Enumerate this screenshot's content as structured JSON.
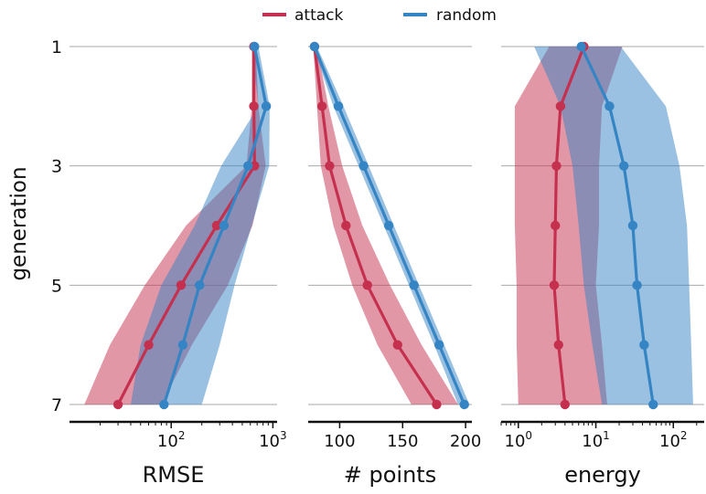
{
  "legend": {
    "position": "top-center"
  },
  "colors": {
    "attack": "#c5304f",
    "random": "#3584c3",
    "grid": "#aaaaaa",
    "axis": "#111111"
  },
  "chart_data": [
    {
      "type": "line",
      "ylabel": "generation",
      "xlabel": "RMSE",
      "xscale": "log",
      "xlim": [
        10,
        1100
      ],
      "xticks": [
        {
          "value": 100,
          "label": "10",
          "exp": "2"
        },
        {
          "value": 1000,
          "label": "10",
          "exp": "3"
        }
      ],
      "y": [
        1,
        2,
        3,
        4,
        5,
        6,
        7
      ],
      "yticks": [
        "1",
        "3",
        "5",
        "7"
      ],
      "grid": "horizontal",
      "series": [
        {
          "name": "attack",
          "values": [
            650,
            650,
            660,
            280,
            125,
            60,
            30
          ],
          "lower": [
            620,
            620,
            550,
            140,
            55,
            25,
            14
          ],
          "upper": [
            680,
            720,
            850,
            630,
            360,
            160,
            80
          ]
        },
        {
          "name": "random",
          "values": [
            660,
            860,
            570,
            330,
            190,
            130,
            85
          ],
          "lower": [
            620,
            720,
            310,
            170,
            80,
            50,
            40
          ],
          "upper": [
            720,
            930,
            920,
            620,
            420,
            300,
            200
          ]
        }
      ]
    },
    {
      "type": "line",
      "xlabel": "# points",
      "xscale": "linear",
      "xlim": [
        75,
        205
      ],
      "xticks": [
        {
          "value": 100,
          "label": "100"
        },
        {
          "value": 150,
          "label": "150"
        },
        {
          "value": 200,
          "label": "200"
        }
      ],
      "y": [
        1,
        2,
        3,
        4,
        5,
        6,
        7
      ],
      "series": [
        {
          "name": "attack",
          "values": [
            80,
            86,
            92,
            105,
            122,
            146,
            177
          ],
          "lower": [
            79,
            82,
            85,
            95,
            110,
            130,
            157
          ],
          "upper": [
            82,
            91,
            102,
            118,
            140,
            165,
            194
          ]
        },
        {
          "name": "random",
          "values": [
            80,
            99,
            119,
            139,
            159,
            179,
            199
          ],
          "lower": [
            79,
            95,
            115,
            135,
            155,
            175,
            194
          ],
          "upper": [
            82,
            103,
            123,
            143,
            163,
            183,
            203
          ]
        }
      ]
    },
    {
      "type": "line",
      "xlabel": "energy",
      "xscale": "log",
      "xlim": [
        0.6,
        250
      ],
      "xticks": [
        {
          "value": 1,
          "label": "10",
          "exp": "0"
        },
        {
          "value": 10,
          "label": "10",
          "exp": "1"
        },
        {
          "value": 100,
          "label": "10",
          "exp": "2"
        }
      ],
      "y": [
        1,
        2,
        3,
        4,
        5,
        6,
        7
      ],
      "series": [
        {
          "name": "attack",
          "values": [
            7,
            3.5,
            3.1,
            3.0,
            2.9,
            3.3,
            4.0
          ],
          "lower": [
            2.5,
            0.9,
            0.9,
            0.9,
            0.95,
            0.95,
            1.0
          ],
          "upper": [
            22,
            12,
            11,
            11,
            10,
            12,
            14
          ]
        },
        {
          "name": "random",
          "values": [
            6.5,
            15,
            23,
            30,
            34,
            42,
            55
          ],
          "lower": [
            1.6,
            3.5,
            5.0,
            6.0,
            7.0,
            9.0,
            12.0
          ],
          "upper": [
            21,
            80,
            120,
            150,
            160,
            170,
            180
          ]
        }
      ]
    }
  ]
}
